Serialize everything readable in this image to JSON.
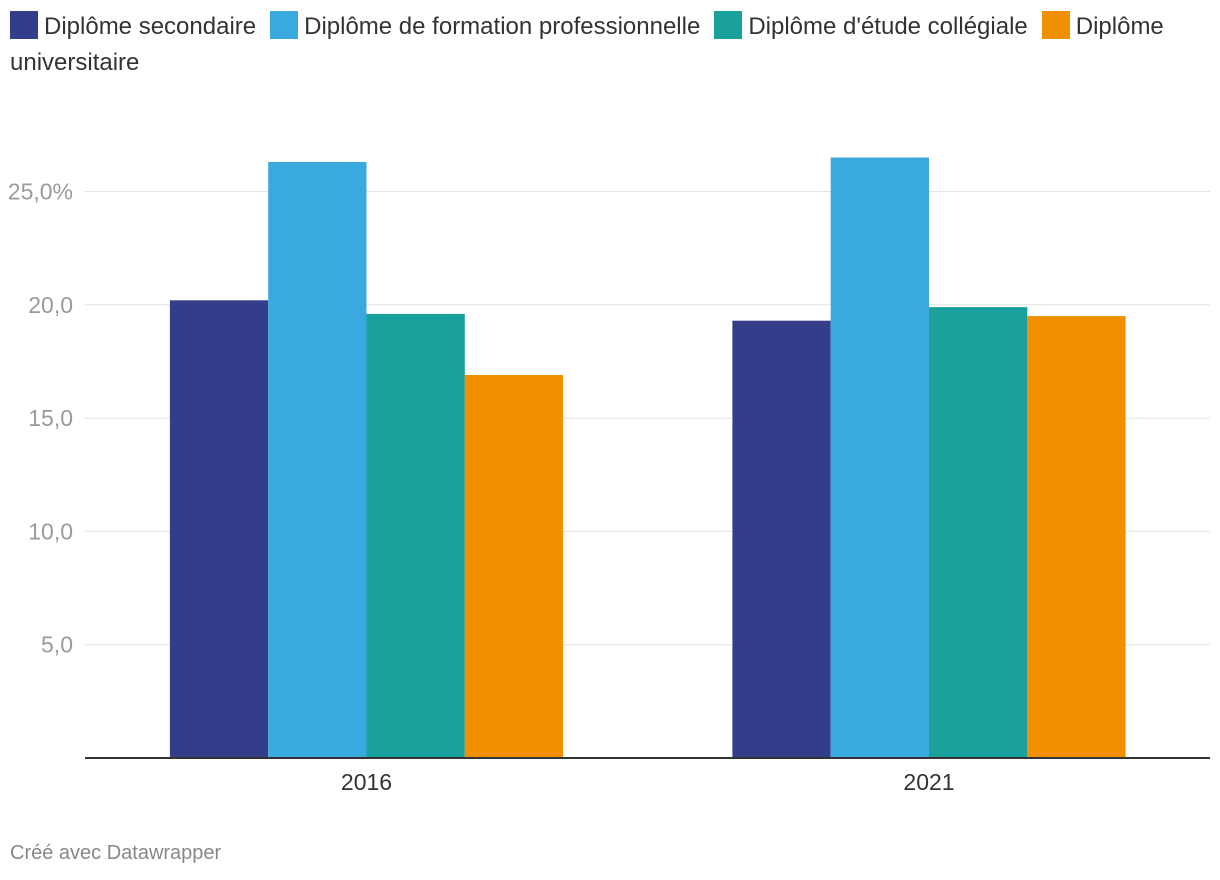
{
  "chart_data": {
    "type": "bar",
    "categories": [
      "2016",
      "2021"
    ],
    "series": [
      {
        "name": "Diplôme secondaire",
        "color": "#333d8a",
        "values": [
          20.2,
          19.3
        ]
      },
      {
        "name": "Diplôme de formation professionnelle",
        "color": "#3aa9e0",
        "values": [
          26.3,
          26.5
        ]
      },
      {
        "name": "Diplôme d'étude collégiale",
        "color": "#1aa19c",
        "values": [
          19.6,
          19.9
        ]
      },
      {
        "name": "Diplôme universitaire",
        "color": "#f08f00",
        "values": [
          16.9,
          19.5
        ]
      }
    ],
    "ylim": [
      0,
      27
    ],
    "yticks": [
      {
        "value": 25,
        "label": "25,0%"
      },
      {
        "value": 20,
        "label": "20,0"
      },
      {
        "value": 15,
        "label": "15,0"
      },
      {
        "value": 10,
        "label": "10,0"
      },
      {
        "value": 5,
        "label": "5,0"
      }
    ],
    "grid": true,
    "legend_position": "top"
  },
  "credit": "Créé avec Datawrapper"
}
